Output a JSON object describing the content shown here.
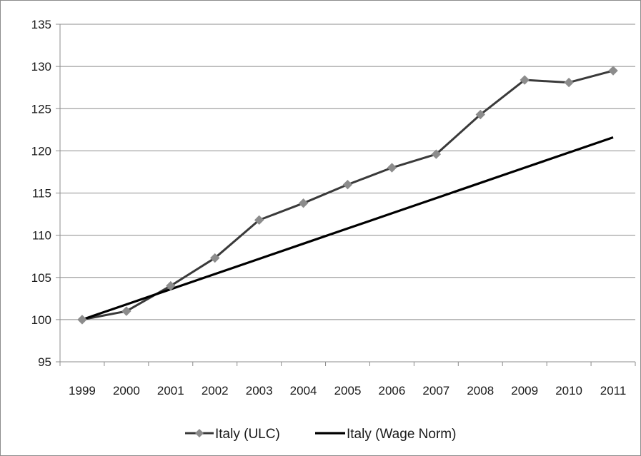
{
  "chart_data": {
    "type": "line",
    "title": "",
    "xlabel": "",
    "ylabel": "",
    "categories": [
      "1999",
      "2000",
      "2001",
      "2002",
      "2003",
      "2004",
      "2005",
      "2006",
      "2007",
      "2008",
      "2009",
      "2010",
      "2011"
    ],
    "ylim": [
      95,
      135
    ],
    "yticks": [
      95,
      100,
      105,
      110,
      115,
      120,
      125,
      130,
      135
    ],
    "grid": true,
    "legend_position": "bottom",
    "series": [
      {
        "name": "Italy (ULC)",
        "marker": "diamond",
        "color": "#3a3a3a",
        "marker_color": "#8c8c8c",
        "values": [
          100,
          101,
          104,
          107.3,
          111.8,
          113.8,
          116,
          118,
          119.6,
          124.3,
          128.4,
          128.1,
          129.5
        ]
      },
      {
        "name": "Italy (Wage Norm)",
        "marker": "none",
        "color": "#000000",
        "values": [
          100,
          101.8,
          103.6,
          105.4,
          107.2,
          109.0,
          110.8,
          112.6,
          114.4,
          116.2,
          118.0,
          119.8,
          121.6
        ]
      }
    ]
  }
}
